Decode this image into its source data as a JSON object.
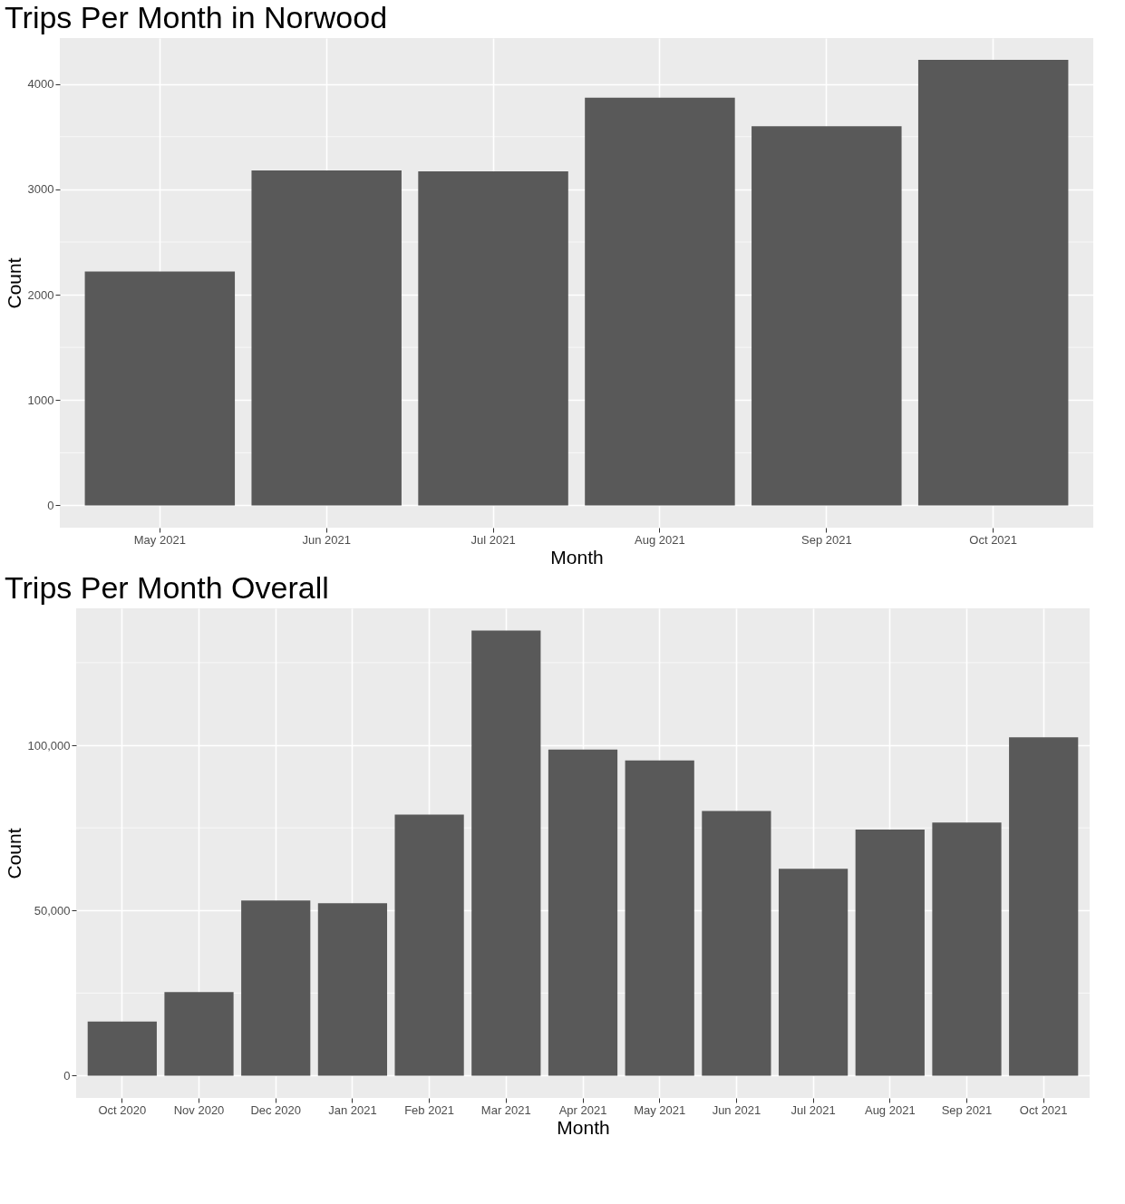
{
  "chart_data": [
    {
      "type": "bar",
      "title": "Trips Per Month in Norwood",
      "xlabel": "Month",
      "ylabel": "Count",
      "categories": [
        "May 2021",
        "Jun 2021",
        "Jul 2021",
        "Aug 2021",
        "Sep 2021",
        "Oct 2021"
      ],
      "values": [
        2220,
        3180,
        3170,
        3870,
        3600,
        4230
      ],
      "color": "#595959",
      "ylim": [
        -211,
        4436
      ],
      "yticks": [
        0,
        {
          "value": 500,
          "label": null
        },
        1000,
        {
          "value": 1500,
          "label": null
        },
        2000,
        {
          "value": 2500,
          "label": null
        },
        3000,
        {
          "value": 3500,
          "label": null
        },
        4000
      ],
      "grid": true
    },
    {
      "type": "bar",
      "title": "Trips Per Month Overall",
      "xlabel": "Month",
      "ylabel": "Count",
      "categories": [
        "Oct 2020",
        "Nov 2020",
        "Dec 2020",
        "Jan 2021",
        "Feb 2021",
        "Mar 2021",
        "Apr 2021",
        "May 2021",
        "Jun 2021",
        "Jul 2021",
        "Aug 2021",
        "Sep 2021",
        "Oct 2021"
      ],
      "values": [
        16400,
        25300,
        53000,
        52200,
        79000,
        134700,
        98700,
        95400,
        80100,
        62600,
        74500,
        76600,
        102400
      ],
      "color": "#595959",
      "ylim": [
        -6735,
        141435
      ],
      "yticks": [
        0,
        {
          "value": 25000,
          "label": null
        },
        {
          "value": 50000,
          "label": "50,000"
        },
        {
          "value": 75000,
          "label": null
        },
        {
          "value": 100000,
          "label": "100,000"
        },
        {
          "value": 125000,
          "label": null
        }
      ],
      "grid": true
    }
  ]
}
